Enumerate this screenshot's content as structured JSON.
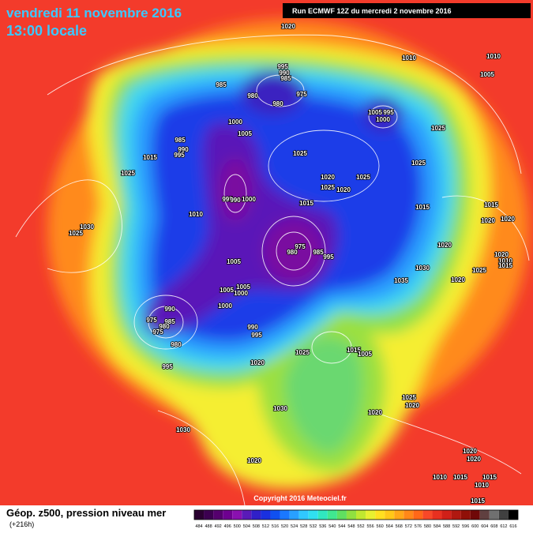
{
  "header": {
    "date": "vendredi 11 novembre 2016",
    "time": "13:00 locale",
    "run": "Run ECMWF 12Z du mercredi 2 novembre 2016"
  },
  "map": {
    "isobar_labels": [
      "1020",
      "1010",
      "1010",
      "1005",
      "995",
      "990",
      "985",
      "985",
      "980",
      "975",
      "980",
      "1005",
      "995",
      "1000",
      "1000",
      "1005",
      "985",
      "990",
      "995",
      "1015",
      "1025",
      "1020",
      "1025",
      "1020",
      "1025",
      "1025",
      "1025",
      "1025",
      "995",
      "990",
      "1000",
      "1015",
      "1015",
      "1010",
      "1015",
      "1020",
      "1030",
      "1025",
      "1020",
      "975",
      "980",
      "985",
      "995",
      "1020",
      "1020",
      "1010",
      "1015",
      "1025",
      "1030",
      "1035",
      "1020",
      "1005",
      "1005",
      "1000",
      "1005",
      "1000",
      "990",
      "975",
      "985",
      "980",
      "975",
      "980",
      "990",
      "995",
      "995",
      "1025",
      "1015",
      "1005",
      "1020",
      "1025",
      "1020",
      "1030",
      "1020",
      "1030",
      "1020",
      "1020",
      "1020",
      "1010",
      "1015",
      "1015",
      "1010",
      "1015"
    ],
    "copyright": "Copyright 2016 Meteociel.fr"
  },
  "footer": {
    "title": "Géop. z500, pression niveau mer",
    "lead": "(+216h)",
    "scale_values": [
      484,
      488,
      492,
      496,
      500,
      504,
      508,
      512,
      516,
      520,
      524,
      528,
      532,
      536,
      540,
      544,
      548,
      552,
      556,
      560,
      564,
      568,
      572,
      576,
      580,
      584,
      588,
      592,
      596,
      600,
      604,
      608,
      612,
      616
    ],
    "scale_colors": [
      "#2a0030",
      "#3c0050",
      "#55006e",
      "#6e0090",
      "#8a10b0",
      "#5a1ab8",
      "#3020c8",
      "#1a30e0",
      "#1050f0",
      "#1a78ff",
      "#28a0ff",
      "#30c8ff",
      "#30e0f0",
      "#30e8c0",
      "#40e890",
      "#60e060",
      "#90e040",
      "#c0e830",
      "#e8f030",
      "#ffe020",
      "#ffc818",
      "#ffa818",
      "#ff8818",
      "#ff6818",
      "#f84828",
      "#e83020",
      "#d02018",
      "#b01810",
      "#901008",
      "#700808",
      "#604040",
      "#707070",
      "#404040",
      "#000000"
    ]
  }
}
